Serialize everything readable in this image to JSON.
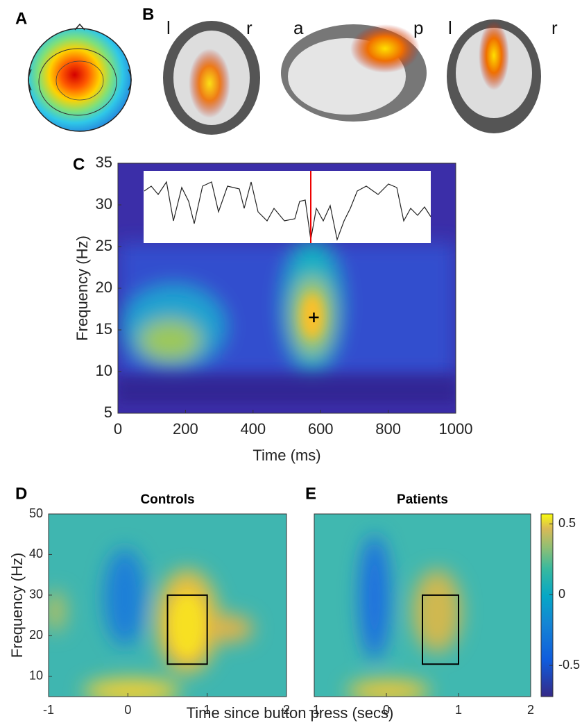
{
  "topomap_label": "A",
  "brain_label": "B",
  "brain_orientation": [
    "l",
    "r",
    "a",
    "p",
    "l",
    "r"
  ],
  "shared_xlabel": "Time since button press (secs)",
  "chart_data": [
    {
      "type": "heatmap",
      "panel": "C",
      "xlabel": "Time (ms)",
      "ylabel": "Frequency (Hz)",
      "xlim": [
        0,
        1000
      ],
      "ylim": [
        5,
        35
      ],
      "xticks": [
        0,
        200,
        400,
        600,
        800,
        1000
      ],
      "yticks": [
        5,
        10,
        15,
        20,
        25,
        30,
        35
      ],
      "peak": {
        "x": 580,
        "y": 16.5
      }
    },
    {
      "type": "heatmap",
      "panel": "D",
      "title": "Controls",
      "ylabel": "Frequency (Hz)",
      "xlim": [
        -1,
        2
      ],
      "ylim": [
        5,
        50
      ],
      "xticks": [
        -1,
        0,
        1,
        2
      ],
      "yticks": [
        10,
        20,
        30,
        40,
        50
      ],
      "box": {
        "x": [
          0.5,
          1
        ],
        "y": [
          13,
          30
        ]
      }
    },
    {
      "type": "heatmap",
      "panel": "E",
      "title": "Patients",
      "xlim": [
        -1,
        2
      ],
      "ylim": [
        5,
        50
      ],
      "xticks": [
        -1,
        0,
        1,
        2
      ],
      "box": {
        "x": [
          0.5,
          1
        ],
        "y": [
          13,
          30
        ]
      },
      "colorbar": {
        "lim": [
          -0.72,
          0.57
        ],
        "ticks": [
          -0.5,
          0,
          0.5
        ]
      }
    }
  ]
}
